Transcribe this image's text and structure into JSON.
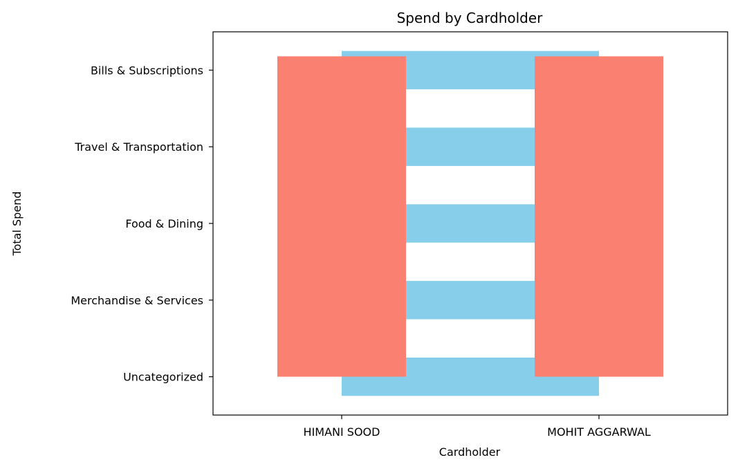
{
  "chart_data": {
    "type": "bar",
    "title": "Spend by Cardholder",
    "xlabel": "Cardholder",
    "ylabel": "Total Spend",
    "x_categories": [
      "HIMANI SOOD",
      "MOHIT AGGARWAL"
    ],
    "y_categories": [
      "Uncategorized",
      "Merchandise & Services",
      "Food & Dining",
      "Travel & Transportation",
      "Bills & Subscriptions"
    ],
    "grid": false,
    "series": [
      {
        "orientation": "vertical",
        "color": "#fa8072",
        "values": [
          4.0,
          4.0
        ]
      },
      {
        "orientation": "horizontal",
        "color": "#87ceeb",
        "values": [
          1.0,
          1.0,
          1.0,
          1.0,
          1.0
        ]
      }
    ],
    "xlim": [
      -0.5,
      1.5
    ],
    "ylim": [
      -0.5,
      4.5
    ]
  }
}
